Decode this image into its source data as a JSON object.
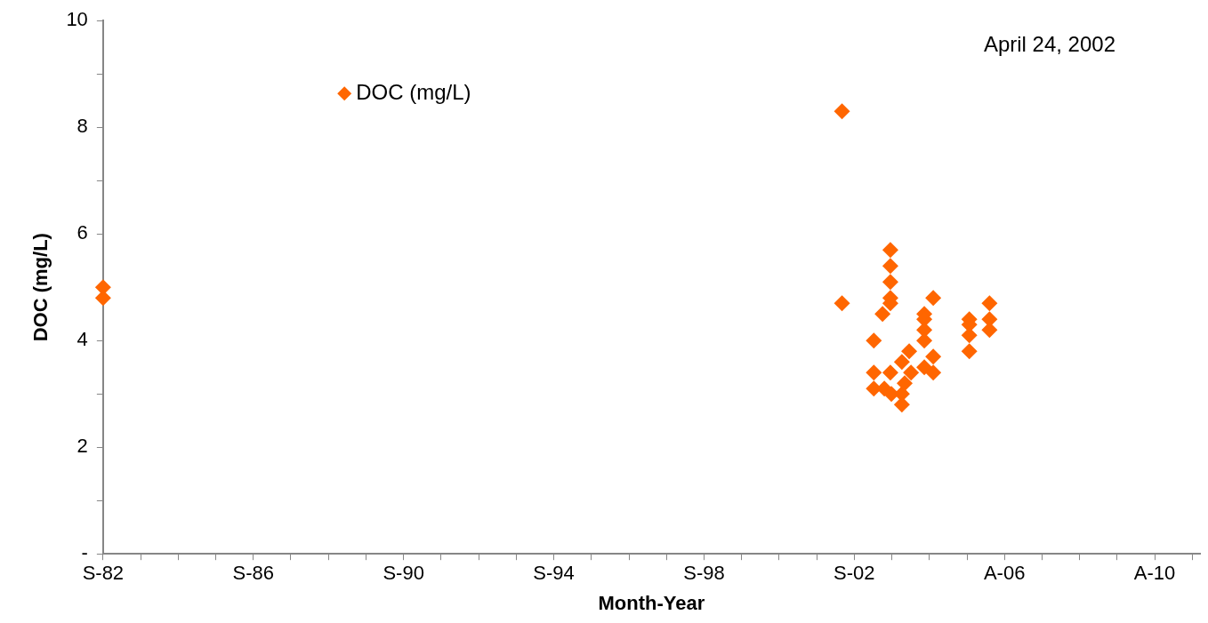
{
  "chart_data": {
    "type": "scatter",
    "xlabel": "Month-Year",
    "ylabel": "DOC (mg/L)",
    "annotations": [
      "April 24, 2002"
    ],
    "series": [
      {
        "name": "DOC (mg/L)",
        "color": "#ff6600",
        "x": [
          "1982-09-01",
          "1982-09-01",
          "2002-05-05",
          "2002-05-05",
          "2003-08-18",
          "2003-08-18",
          "2003-08-18",
          "2003-08-18",
          "2003-08-18",
          "2003-06-03",
          "2003-03-10",
          "2003-03-10",
          "2003-08-18",
          "2003-03-10",
          "2003-06-20",
          "2003-08-28",
          "2003-12-08",
          "2003-12-08",
          "2004-01-04",
          "2003-12-08",
          "2004-02-17",
          "2004-03-06",
          "2004-07-13",
          "2004-07-13",
          "2004-07-13",
          "2004-07-13",
          "2004-10-08",
          "2004-07-13",
          "2004-10-08",
          "2004-10-08",
          "2005-09-24",
          "2005-09-24",
          "2005-09-24",
          "2005-09-24",
          "2006-04-08",
          "2006-04-08",
          "2006-04-08"
        ],
        "values": [
          5.0,
          4.8,
          8.3,
          4.7,
          5.7,
          5.4,
          5.1,
          4.8,
          4.7,
          4.5,
          4.0,
          3.4,
          3.4,
          3.1,
          3.1,
          3.0,
          2.8,
          3.0,
          3.2,
          3.6,
          3.8,
          3.4,
          4.5,
          4.4,
          4.2,
          4.0,
          4.8,
          3.5,
          3.7,
          3.4,
          4.4,
          4.3,
          4.1,
          3.8,
          4.7,
          4.4,
          4.2
        ]
      }
    ],
    "marker": "diamond",
    "legend": "top left",
    "grid": false,
    "xlim": [
      "1982-09-01",
      "2011-11-15"
    ],
    "xticks": [
      {
        "value": "1982-09-01",
        "label": "S-82"
      },
      {
        "value": "1983-09-01",
        "label": null
      },
      {
        "value": "1984-09-01",
        "label": null
      },
      {
        "value": "1985-09-01",
        "label": null
      },
      {
        "value": "1986-09-01",
        "label": "S-86"
      },
      {
        "value": "1987-09-01",
        "label": null
      },
      {
        "value": "1988-09-01",
        "label": null
      },
      {
        "value": "1989-09-01",
        "label": null
      },
      {
        "value": "1990-09-01",
        "label": "S-90"
      },
      {
        "value": "1991-09-01",
        "label": null
      },
      {
        "value": "1992-09-01",
        "label": null
      },
      {
        "value": "1993-09-01",
        "label": null
      },
      {
        "value": "1994-09-01",
        "label": "S-94"
      },
      {
        "value": "1995-09-01",
        "label": null
      },
      {
        "value": "1996-09-01",
        "label": null
      },
      {
        "value": "1997-09-01",
        "label": null
      },
      {
        "value": "1998-09-01",
        "label": "S-98"
      },
      {
        "value": "1999-09-01",
        "label": null
      },
      {
        "value": "2000-09-01",
        "label": null
      },
      {
        "value": "2001-09-01",
        "label": null
      },
      {
        "value": "2002-09-01",
        "label": "S-02"
      },
      {
        "value": "2003-09-01",
        "label": null
      },
      {
        "value": "2004-09-01",
        "label": null
      },
      {
        "value": "2005-09-01",
        "label": null
      },
      {
        "value": "2006-08-31",
        "label": "A-06"
      },
      {
        "value": "2007-08-31",
        "label": null
      },
      {
        "value": "2008-08-31",
        "label": null
      },
      {
        "value": "2009-08-31",
        "label": null
      },
      {
        "value": "2010-08-31",
        "label": "A-10"
      },
      {
        "value": "2011-08-31",
        "label": null
      }
    ],
    "ylim": [
      0,
      10
    ],
    "yticks": [
      {
        "value": 0,
        "label": "-"
      },
      {
        "value": 1,
        "label": null
      },
      2,
      {
        "value": 3,
        "label": null
      },
      4,
      {
        "value": 5,
        "label": null
      },
      6,
      {
        "value": 7,
        "label": null
      },
      8,
      {
        "value": 9,
        "label": null
      },
      10
    ]
  }
}
